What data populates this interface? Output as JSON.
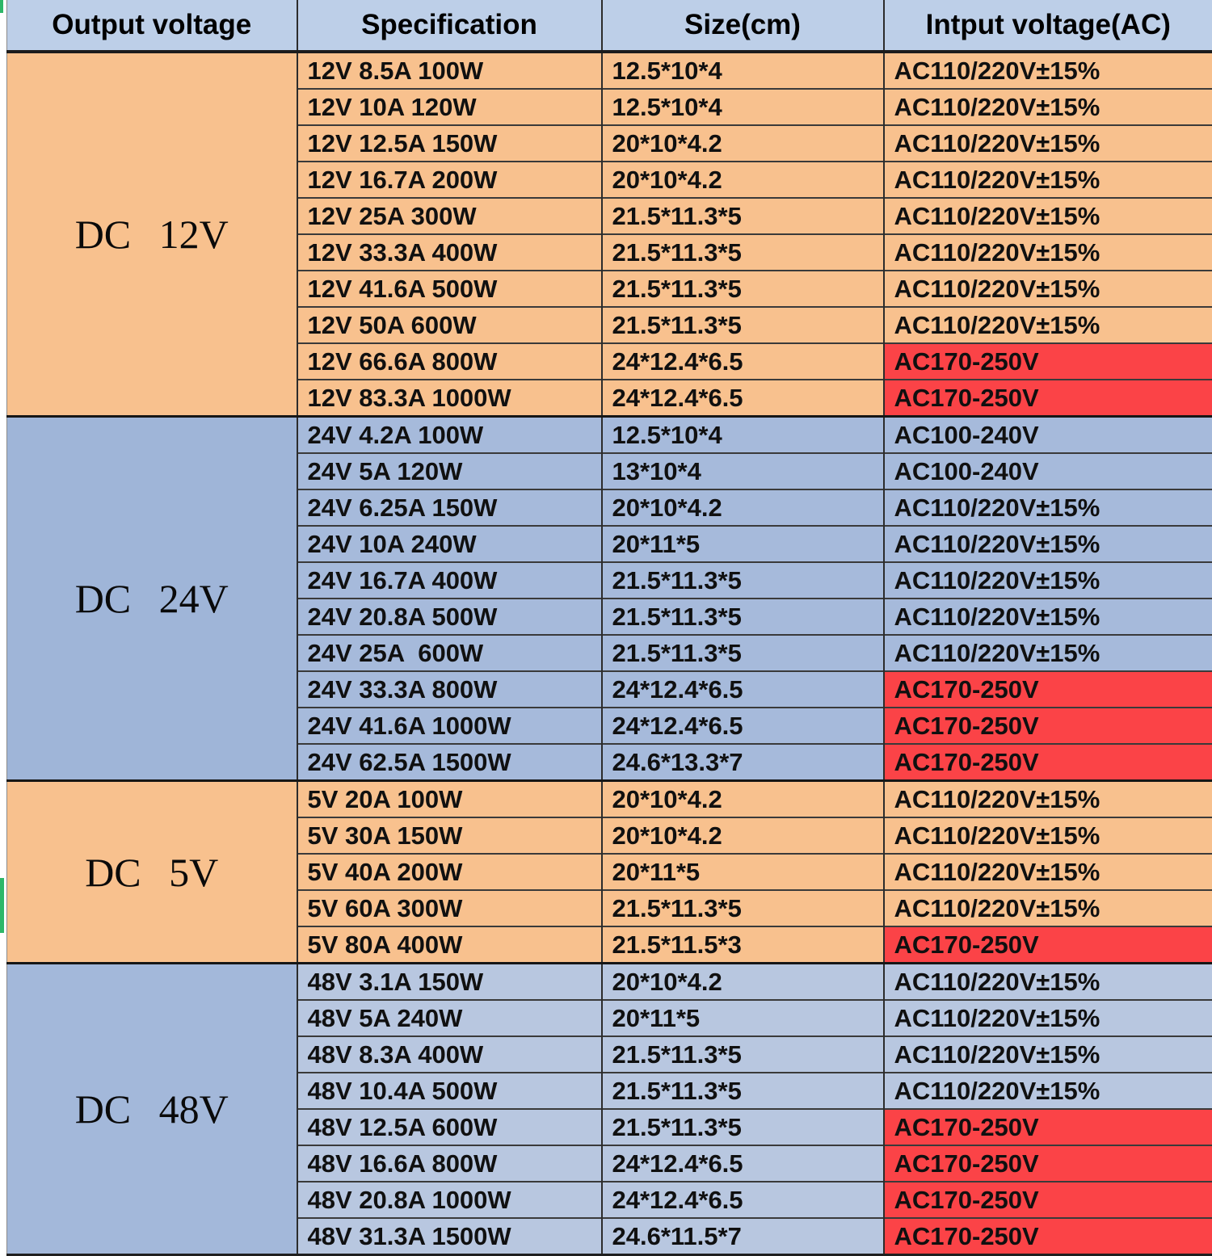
{
  "header": {
    "columns": [
      "Output voltage",
      "Specification",
      "Size(cm)",
      "Intput voltage(AC)"
    ]
  },
  "groups": [
    {
      "label": "DC 12V",
      "label_bg": "#f8c18e",
      "row_bg": "#f8c18e",
      "rows": [
        {
          "spec": "12V 8.5A 100W",
          "size": "12.5*10*4",
          "input": "AC110/220V±15%",
          "red": false
        },
        {
          "spec": "12V 10A 120W",
          "size": "12.5*10*4",
          "input": "AC110/220V±15%",
          "red": false
        },
        {
          "spec": "12V 12.5A 150W",
          "size": "20*10*4.2",
          "input": "AC110/220V±15%",
          "red": false
        },
        {
          "spec": "12V 16.7A 200W",
          "size": "20*10*4.2",
          "input": "AC110/220V±15%",
          "red": false
        },
        {
          "spec": "12V 25A 300W",
          "size": "21.5*11.3*5",
          "input": "AC110/220V±15%",
          "red": false
        },
        {
          "spec": "12V 33.3A 400W",
          "size": "21.5*11.3*5",
          "input": "AC110/220V±15%",
          "red": false
        },
        {
          "spec": "12V 41.6A 500W",
          "size": "21.5*11.3*5",
          "input": "AC110/220V±15%",
          "red": false
        },
        {
          "spec": "12V 50A 600W",
          "size": "21.5*11.3*5",
          "input": "AC110/220V±15%",
          "red": false
        },
        {
          "spec": "12V 66.6A 800W",
          "size": "24*12.4*6.5",
          "input": "AC170-250V",
          "red": true
        },
        {
          "spec": "12V 83.3A 1000W",
          "size": "24*12.4*6.5",
          "input": "AC170-250V",
          "red": true
        }
      ]
    },
    {
      "label": "DC 24V",
      "label_bg": "#9fb5d8",
      "row_bg": "#a6badb",
      "rows": [
        {
          "spec": "24V 4.2A 100W",
          "size": "12.5*10*4",
          "input": "AC100-240V",
          "red": false
        },
        {
          "spec": "24V 5A 120W",
          "size": "13*10*4",
          "input": "AC100-240V",
          "red": false
        },
        {
          "spec": "24V 6.25A 150W",
          "size": "20*10*4.2",
          "input": "AC110/220V±15%",
          "red": false
        },
        {
          "spec": "24V 10A 240W",
          "size": "20*11*5",
          "input": "AC110/220V±15%",
          "red": false
        },
        {
          "spec": "24V 16.7A 400W",
          "size": "21.5*11.3*5",
          "input": "AC110/220V±15%",
          "red": false
        },
        {
          "spec": "24V 20.8A 500W",
          "size": "21.5*11.3*5",
          "input": "AC110/220V±15%",
          "red": false
        },
        {
          "spec": "24V 25A  600W",
          "size": "21.5*11.3*5",
          "input": "AC110/220V±15%",
          "red": false
        },
        {
          "spec": "24V 33.3A 800W",
          "size": "24*12.4*6.5",
          "input": "AC170-250V",
          "red": true
        },
        {
          "spec": "24V 41.6A 1000W",
          "size": "24*12.4*6.5",
          "input": "AC170-250V",
          "red": true
        },
        {
          "spec": "24V 62.5A 1500W",
          "size": "24.6*13.3*7",
          "input": "AC170-250V",
          "red": true
        }
      ]
    },
    {
      "label": "DC 5V",
      "label_bg": "#f8c18e",
      "row_bg": "#f8c18e",
      "rows": [
        {
          "spec": "5V 20A 100W",
          "size": "20*10*4.2",
          "input": "AC110/220V±15%",
          "red": false
        },
        {
          "spec": "5V 30A 150W",
          "size": "20*10*4.2",
          "input": "AC110/220V±15%",
          "red": false
        },
        {
          "spec": "5V 40A 200W",
          "size": "20*11*5",
          "input": "AC110/220V±15%",
          "red": false
        },
        {
          "spec": "5V 60A 300W",
          "size": "21.5*11.3*5",
          "input": "AC110/220V±15%",
          "red": false
        },
        {
          "spec": "5V 80A 400W",
          "size": "21.5*11.5*3",
          "input": "AC170-250V",
          "red": true
        }
      ]
    },
    {
      "label": "DC 48V",
      "label_bg": "#a3b8da",
      "row_bg": "#b8c7e0",
      "rows": [
        {
          "spec": "48V 3.1A 150W",
          "size": "20*10*4.2",
          "input": "AC110/220V±15%",
          "red": false
        },
        {
          "spec": "48V 5A 240W",
          "size": "20*11*5",
          "input": "AC110/220V±15%",
          "red": false
        },
        {
          "spec": "48V 8.3A 400W",
          "size": "21.5*11.3*5",
          "input": "AC110/220V±15%",
          "red": false
        },
        {
          "spec": "48V 10.4A 500W",
          "size": "21.5*11.3*5",
          "input": "AC110/220V±15%",
          "red": false
        },
        {
          "spec": "48V 12.5A 600W",
          "size": "21.5*11.3*5",
          "input": "AC170-250V",
          "red": true
        },
        {
          "spec": "48V 16.6A 800W",
          "size": "24*12.4*6.5",
          "input": "AC170-250V",
          "red": true
        },
        {
          "spec": "48V 20.8A 1000W",
          "size": "24*12.4*6.5",
          "input": "AC170-250V",
          "red": true
        },
        {
          "spec": "48V 31.3A 1500W",
          "size": "24.6*11.5*7",
          "input": "AC170-250V",
          "red": true
        }
      ]
    }
  ],
  "colors": {
    "header_bg": "#bdcfe8",
    "red_cell": "#fb4347",
    "green_artifact": "#2db768"
  }
}
